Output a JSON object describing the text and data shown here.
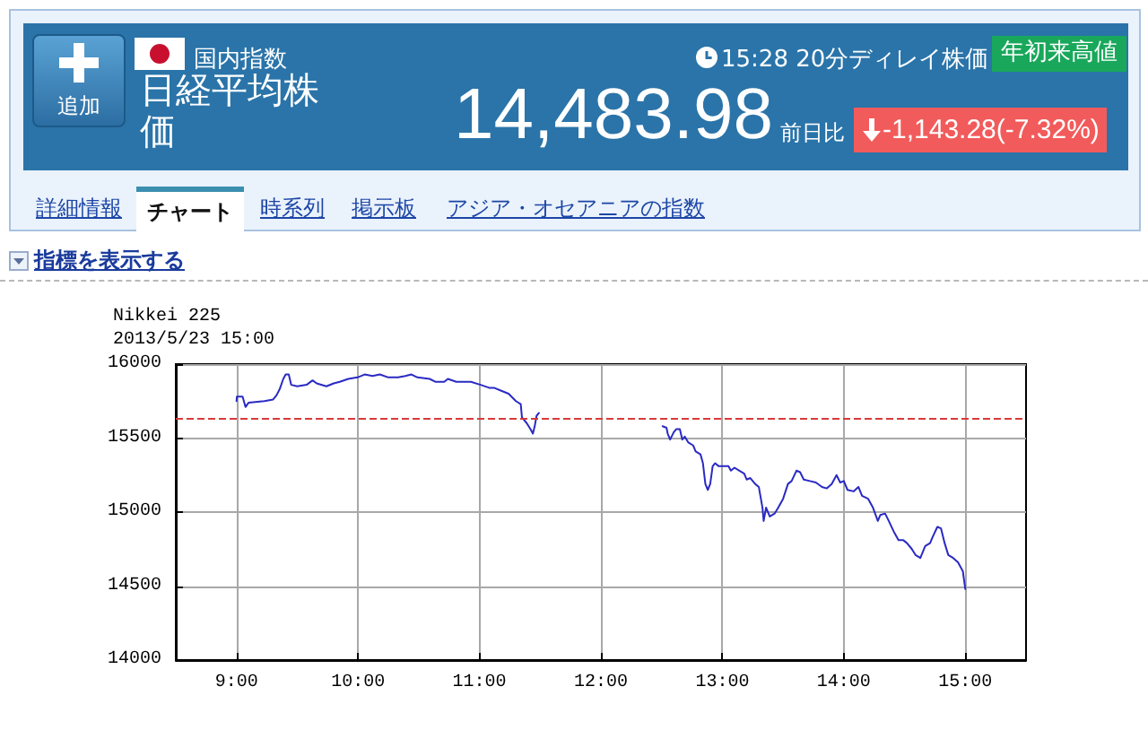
{
  "chart_data": {
    "type": "line",
    "title": "Nikkei 225",
    "subtitle": "2013/5/23 15:00",
    "annotations": [
      "追加",
      "国内指数",
      "日経平均株価",
      "15:28 20分ディレイ株価",
      "年初来高値",
      "14,483.98",
      "前日比",
      "-1,143.28(-7.32%)",
      "詳細情報",
      "チャート",
      "時系列",
      "掲示板",
      "アジア・オセアニアの指数",
      "指標を表示する"
    ],
    "x": [
      9.0,
      9.003,
      9.05,
      9.074,
      9.1,
      9.23,
      9.3,
      9.33,
      9.355,
      9.385,
      9.405,
      9.43,
      9.45,
      9.5,
      9.577,
      9.626,
      9.66,
      9.74,
      9.8,
      9.85,
      9.92,
      9.996,
      10.055,
      10.12,
      10.18,
      10.25,
      10.33,
      10.39,
      10.44,
      10.49,
      10.59,
      10.64,
      10.71,
      10.74,
      10.81,
      10.93,
      11.01,
      11.08,
      11.12,
      11.18,
      11.24,
      11.3,
      11.34,
      11.35,
      11.39,
      11.42,
      11.44,
      11.455,
      11.47,
      11.49,
      12.0,
      12.508,
      12.54,
      12.55,
      12.57,
      12.6,
      12.62,
      12.65,
      12.67,
      12.69,
      12.72,
      12.76,
      12.78,
      12.82,
      12.84,
      12.86,
      12.88,
      12.9,
      12.92,
      12.94,
      12.97,
      13.01,
      13.05,
      13.07,
      13.1,
      13.14,
      13.18,
      13.2,
      13.23,
      13.27,
      13.3,
      13.33,
      13.34,
      13.36,
      13.39,
      13.43,
      13.46,
      13.5,
      13.54,
      13.57,
      13.61,
      13.64,
      13.67,
      13.72,
      13.77,
      13.82,
      13.86,
      13.9,
      13.94,
      13.97,
      14.0,
      14.03,
      14.08,
      14.12,
      14.15,
      14.2,
      14.24,
      14.28,
      14.3,
      14.34,
      14.37,
      14.41,
      14.45,
      14.49,
      14.52,
      14.56,
      14.59,
      14.63,
      14.67,
      14.71,
      14.73,
      14.77,
      14.8,
      14.83,
      14.86,
      14.9,
      14.94,
      14.98,
      15.0
    ],
    "values": [
      15750,
      15780,
      15780,
      15710,
      15740,
      15750,
      15760,
      15790,
      15830,
      15900,
      15930,
      15930,
      15860,
      15850,
      15860,
      15890,
      15870,
      15850,
      15870,
      15880,
      15900,
      15910,
      15930,
      15920,
      15930,
      15910,
      15910,
      15920,
      15930,
      15910,
      15900,
      15880,
      15880,
      15900,
      15880,
      15880,
      15860,
      15840,
      15840,
      15820,
      15800,
      15750,
      15730,
      15640,
      15600,
      15560,
      15530,
      15580,
      15650,
      15670,
      null,
      15580,
      15570,
      15530,
      15490,
      15540,
      15560,
      15560,
      15490,
      15510,
      15470,
      15450,
      15410,
      15390,
      15330,
      15190,
      15150,
      15190,
      15310,
      15330,
      15310,
      15310,
      15310,
      15280,
      15300,
      15280,
      15260,
      15220,
      15230,
      15190,
      15170,
      15030,
      14940,
      15030,
      14970,
      14990,
      15030,
      15090,
      15190,
      15210,
      15280,
      15270,
      15220,
      15210,
      15200,
      15170,
      15160,
      15190,
      15250,
      15200,
      15210,
      15150,
      15140,
      15170,
      15110,
      15090,
      15030,
      14940,
      14980,
      14990,
      14940,
      14870,
      14810,
      14810,
      14790,
      14750,
      14710,
      14690,
      14770,
      14790,
      14830,
      14900,
      14890,
      14790,
      14710,
      14690,
      14660,
      14600,
      14480
    ],
    "color": "#2a2ac4",
    "xlim": [
      8.5,
      15.5
    ],
    "xticks": [
      {
        "value": 9,
        "label": "9:00"
      },
      {
        "value": 10,
        "label": "10:00"
      },
      {
        "value": 11,
        "label": "11:00"
      },
      {
        "value": 12,
        "label": "12:00"
      },
      {
        "value": 13,
        "label": "13:00"
      },
      {
        "value": 14,
        "label": "14:00"
      },
      {
        "value": 15,
        "label": "15:00"
      }
    ],
    "ylim": [
      14000,
      16000
    ],
    "yticks": [
      14000,
      14500,
      15000,
      15500,
      16000
    ],
    "ref_lines": [
      {
        "axis": "y",
        "value": 15630,
        "color": "#d83a3a",
        "line_style": "dashed"
      }
    ],
    "grid": true,
    "marker": "none",
    "line_style": "solid"
  }
}
